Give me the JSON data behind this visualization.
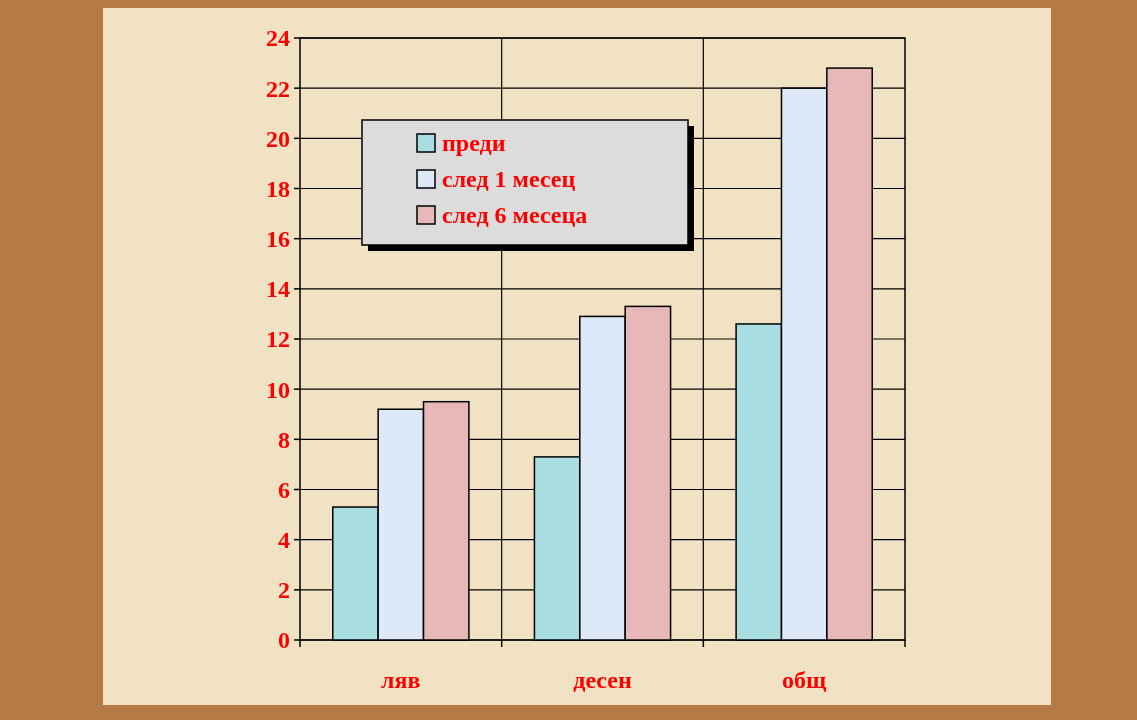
{
  "chart_data": {
    "type": "bar",
    "categories": [
      "ляв",
      "десен",
      "общ"
    ],
    "series": [
      {
        "name": "преди",
        "color": "#a8dde2",
        "values": [
          5.3,
          7.3,
          12.6
        ]
      },
      {
        "name": "след 1 месец",
        "color": "#dde8f8",
        "values": [
          9.2,
          12.9,
          22.0
        ]
      },
      {
        "name": "след 6 месеца",
        "color": "#e8b8b8",
        "values": [
          9.5,
          13.3,
          22.8
        ]
      }
    ],
    "ylim": [
      0,
      24
    ],
    "yticks": [
      0,
      2,
      4,
      6,
      8,
      10,
      12,
      14,
      16,
      18,
      20,
      22,
      24
    ],
    "grid": true,
    "legend": "top left"
  }
}
